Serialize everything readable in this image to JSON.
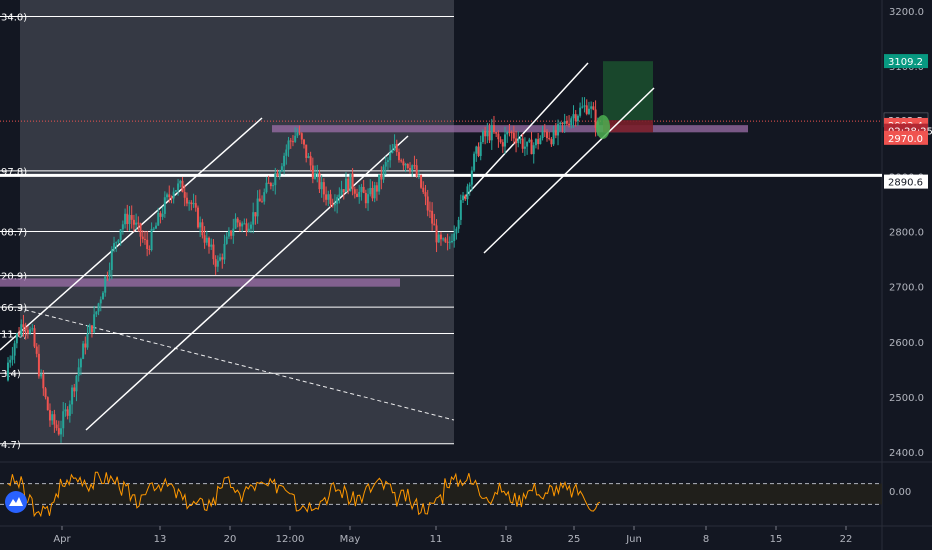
{
  "colors": {
    "background": "#131722",
    "up": "#26a69a",
    "down": "#ef5350",
    "rsi": "#ff9800",
    "fib_zone": "#3c3f4a",
    "zone": "#9c6fa8",
    "channel": "#ffffff",
    "target": "#1b4d2e",
    "stop": "#7a1f2a"
  },
  "chart_data": {
    "type": "candlestick",
    "price_axis": {
      "ticks": [
        "3200.0",
        "3100.0",
        "3000.0",
        "2900.0",
        "2800.0",
        "2700.0",
        "2600.0",
        "2500.0",
        "2400.0"
      ],
      "range": [
        2382,
        3220
      ]
    },
    "time_axis": {
      "ticks": [
        "Apr",
        "13",
        "20",
        "12:00",
        "May",
        "11",
        "18",
        "25",
        "Jun",
        "8",
        "15",
        "22"
      ]
    },
    "price_labels": [
      {
        "value": 3109.2,
        "text": "3109.2",
        "style": "green"
      },
      {
        "value": 3002.5,
        "text": "3002.5",
        "style": "plain"
      },
      {
        "value": 2993.4,
        "text": "2993.4",
        "style": "red"
      },
      {
        "value": 2983,
        "text": "02:28:25",
        "style": "red-dark"
      },
      {
        "value": 2970.0,
        "text": "2970.0",
        "style": "red"
      },
      {
        "value": 2890.6,
        "text": "2890.6",
        "style": "white"
      }
    ],
    "fib_levels": [
      {
        "value": 3190,
        "label": "34.0)"
      },
      {
        "value": 2910,
        "label": "97.8)"
      },
      {
        "value": 2800,
        "label": "08.7)"
      },
      {
        "value": 2720,
        "label": "20.9)"
      },
      {
        "value": 2663,
        "label": "66.3)"
      },
      {
        "value": 2615,
        "label": "11.6)"
      },
      {
        "value": 2543,
        "label": "3.4)"
      },
      {
        "value": 2415,
        "label": "4.7)"
      }
    ],
    "support_resistance_zones": [
      {
        "from": 2980,
        "to": 2993
      },
      {
        "from": 2700,
        "to": 2715
      }
    ],
    "horizontal_line": 2900,
    "entry_line": 3002,
    "target": {
      "from": 3002,
      "to": 3109
    },
    "stop": {
      "from": 2980,
      "to": 3002
    },
    "close_path": [
      2550,
      2600,
      2640,
      2610,
      2530,
      2460,
      2440,
      2480,
      2540,
      2600,
      2640,
      2700,
      2760,
      2810,
      2830,
      2800,
      2770,
      2810,
      2850,
      2880,
      2880,
      2850,
      2810,
      2770,
      2740,
      2780,
      2820,
      2810,
      2830,
      2860,
      2890,
      2920,
      2960,
      2980,
      2940,
      2900,
      2870,
      2860,
      2880,
      2890,
      2870,
      2860,
      2880,
      2920,
      2950,
      2930,
      2920,
      2880,
      2830,
      2780,
      2770,
      2820,
      2870,
      2930,
      2970,
      2980,
      2960,
      2980,
      2970,
      2950,
      2960,
      2980,
      2970,
      2990,
      3010,
      3020,
      3030,
      2990
    ],
    "rsi": {
      "ticks": [
        "0.00"
      ],
      "levels": {
        "upper": 70,
        "lower": 30
      }
    }
  }
}
